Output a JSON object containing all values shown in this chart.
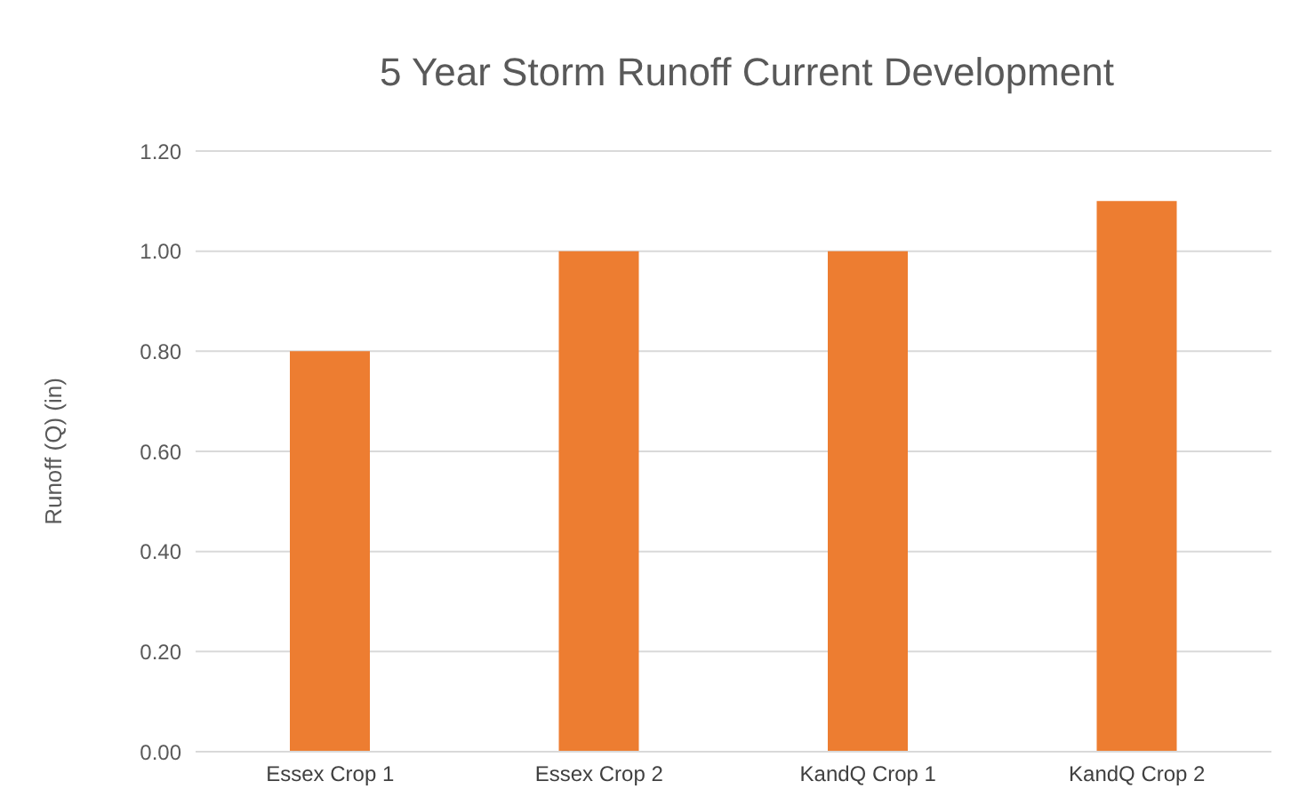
{
  "chart_data": {
    "type": "bar",
    "title": "5 Year Storm Runoff Current Development",
    "ylabel": "Runoff (Q) (in)",
    "categories": [
      "Essex Crop 1",
      "Essex Crop 2",
      "KandQ Crop 1",
      "KandQ Crop 2"
    ],
    "values": [
      0.8,
      1.0,
      1.0,
      1.1
    ],
    "color": "#ed7d31",
    "ylim": [
      0,
      1.2
    ],
    "yticks": [
      {
        "value": 0,
        "label": "0.00"
      },
      {
        "value": 0.2,
        "label": "0.20"
      },
      {
        "value": 0.4,
        "label": "0.40"
      },
      {
        "value": 0.6,
        "label": "0.60"
      },
      {
        "value": 0.8,
        "label": "0.80"
      },
      {
        "value": 1.0,
        "label": "1.00"
      },
      {
        "value": 1.2,
        "label": "1.20"
      }
    ],
    "grid": "y"
  }
}
